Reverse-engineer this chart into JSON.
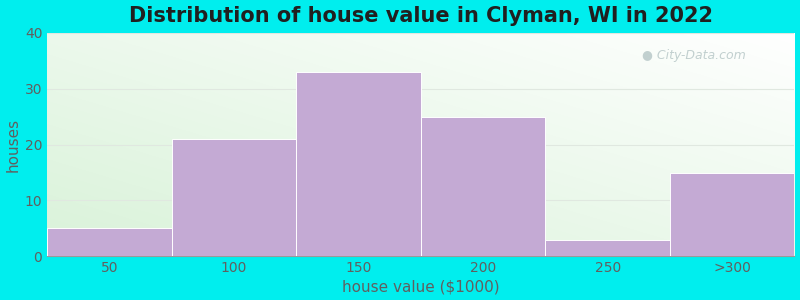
{
  "title": "Distribution of house value in Clyman, WI in 2022",
  "xlabel": "house value ($1000)",
  "ylabel": "houses",
  "categories": [
    "50",
    "100",
    "150",
    "200",
    "250",
    ">300"
  ],
  "values": [
    5,
    21,
    33,
    25,
    3,
    15
  ],
  "bar_color": "#c4aad4",
  "bar_edgecolor": "#ffffff",
  "ylim": [
    0,
    40
  ],
  "yticks": [
    0,
    10,
    20,
    30,
    40
  ],
  "background_color": "#00eeee",
  "title_fontsize": 15,
  "axis_fontsize": 11,
  "tick_fontsize": 10,
  "watermark_text": "City-Data.com",
  "bar_width": 1.0,
  "grid_color": "#e0e8e0",
  "tick_color": "#606060",
  "title_color": "#202020"
}
